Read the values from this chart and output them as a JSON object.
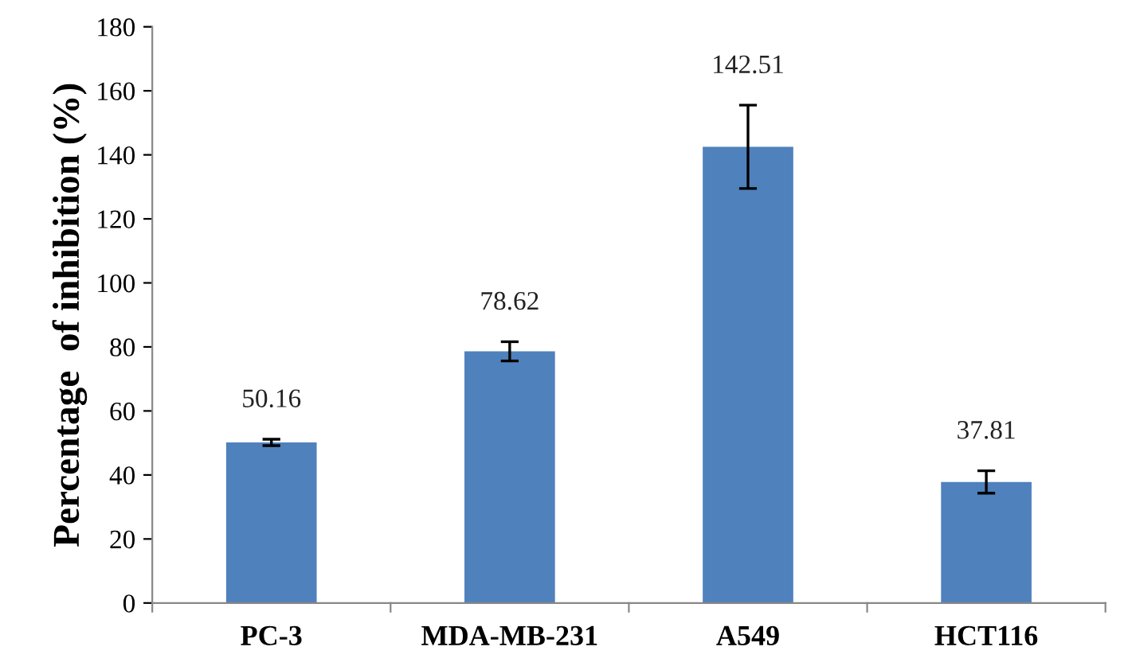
{
  "chart_data": {
    "type": "bar",
    "ylabel": "Percentage  of inhibition (%)",
    "categories": [
      "PC-3",
      "MDA-MB-231",
      "A549",
      "HCT116"
    ],
    "values": [
      50.16,
      78.62,
      142.51,
      37.81
    ],
    "errors": [
      1,
      3,
      13,
      3.5
    ],
    "color": "#4f81bd",
    "data_labels": true,
    "ylim": [
      0,
      180
    ],
    "yticks": [
      0,
      20,
      40,
      60,
      80,
      100,
      120,
      140,
      160,
      180
    ],
    "grid": false,
    "legend": false
  }
}
